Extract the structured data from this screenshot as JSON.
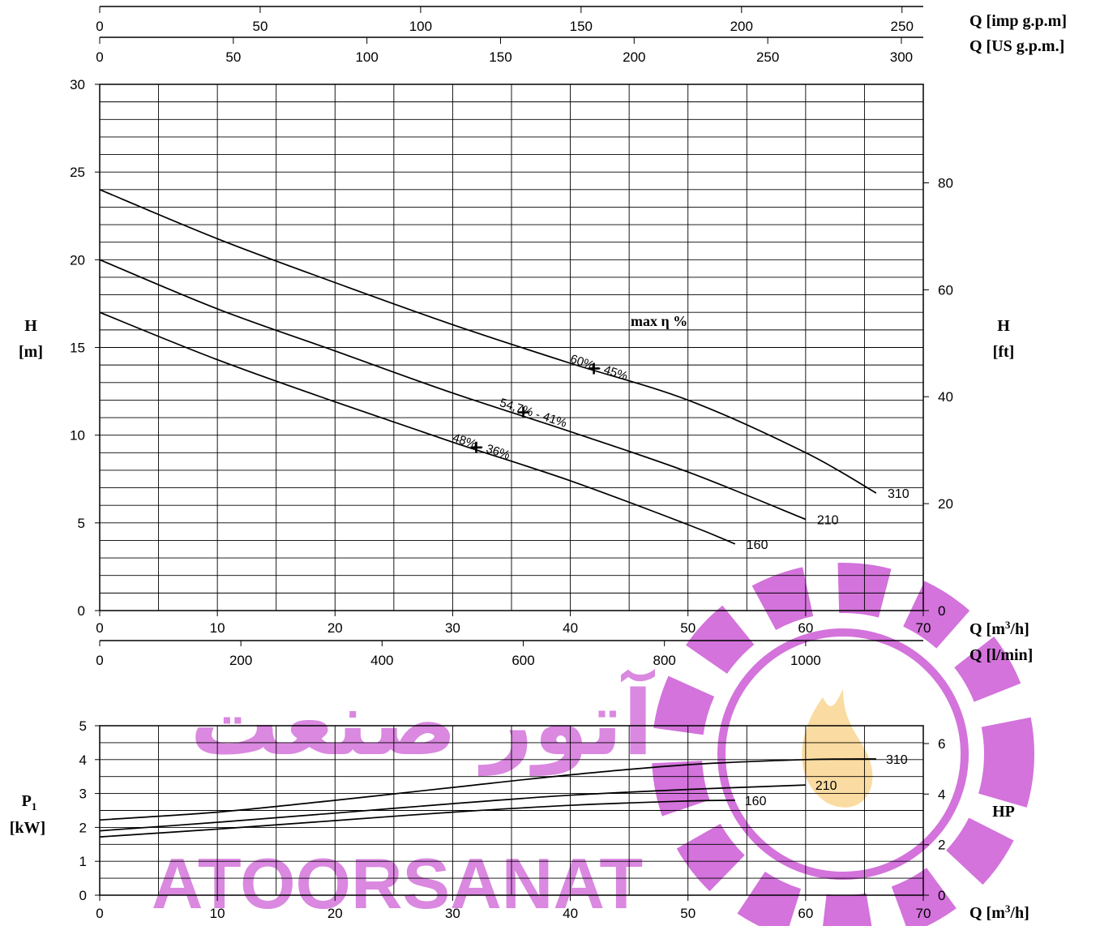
{
  "colors": {
    "line": "#000000",
    "grid": "#000000",
    "watermark": "#c850d2",
    "watermark_flame": "#f5b43c"
  },
  "watermark": {
    "latin_text": "ATOORSANAT",
    "persian_text": "آتور صنعت"
  },
  "chart_data": [
    {
      "type": "line",
      "name": "head",
      "x_unit_label": "Q [m³/h]",
      "xlim": [
        0,
        70
      ],
      "x_ticks": [
        0,
        10,
        20,
        30,
        40,
        50,
        60,
        70
      ],
      "ylabel": "H [m]",
      "ylim": [
        0,
        30
      ],
      "y_ticks": [
        0,
        5,
        10,
        15,
        20,
        25,
        30
      ],
      "right_axis": {
        "label": "H [ft]",
        "ticks": [
          0,
          20,
          40,
          60,
          80
        ]
      },
      "top_axes": [
        {
          "label": "Q [imp g.p.m]",
          "ticks": [
            0,
            50,
            100,
            150,
            200,
            250
          ]
        },
        {
          "label": "Q [US g.p.m.]",
          "ticks": [
            0,
            50,
            100,
            150,
            200,
            250,
            300
          ]
        }
      ],
      "bottom_extra_axis": {
        "label": "Q [l/min]",
        "ticks": [
          0,
          200,
          400,
          600,
          800,
          1000
        ]
      },
      "efficiency_title": "max η %",
      "series": [
        {
          "name": "310",
          "x": [
            0,
            10,
            20,
            30,
            40,
            50,
            60,
            66
          ],
          "y": [
            24.0,
            21.2,
            18.7,
            16.3,
            14.1,
            12.0,
            9.0,
            6.7
          ]
        },
        {
          "name": "210",
          "x": [
            0,
            10,
            20,
            30,
            40,
            50,
            60
          ],
          "y": [
            20.0,
            17.2,
            14.8,
            12.4,
            10.2,
            7.9,
            5.2
          ]
        },
        {
          "name": "160",
          "x": [
            0,
            10,
            20,
            30,
            40,
            50,
            54
          ],
          "y": [
            17.0,
            14.3,
            11.9,
            9.6,
            7.4,
            4.9,
            3.8
          ]
        }
      ],
      "efficiency_points": [
        {
          "label": "60% - 45%",
          "x": 42,
          "y": 13.8
        },
        {
          "label": "54,7% - 41%",
          "x": 36,
          "y": 11.3
        },
        {
          "label": "48% - 36%",
          "x": 32,
          "y": 9.3
        }
      ]
    },
    {
      "type": "line",
      "name": "power",
      "x_unit_label": "Q [m³/h]",
      "xlim": [
        0,
        70
      ],
      "x_ticks": [
        0,
        10,
        20,
        30,
        40,
        50,
        60,
        70
      ],
      "ylabel": "P1 [kW]",
      "ylim": [
        0,
        5
      ],
      "y_ticks": [
        0,
        1,
        2,
        3,
        4,
        5
      ],
      "right_axis": {
        "label": "HP",
        "ticks": [
          0,
          2,
          4,
          6
        ]
      },
      "series": [
        {
          "name": "310",
          "x": [
            0,
            10,
            20,
            30,
            40,
            50,
            60,
            66
          ],
          "y": [
            2.22,
            2.45,
            2.8,
            3.18,
            3.55,
            3.85,
            4.0,
            4.02
          ]
        },
        {
          "name": "210",
          "x": [
            0,
            10,
            20,
            30,
            40,
            50,
            60
          ],
          "y": [
            1.9,
            2.15,
            2.42,
            2.7,
            2.95,
            3.12,
            3.25
          ]
        },
        {
          "name": "160",
          "x": [
            0,
            10,
            20,
            30,
            40,
            50,
            54
          ],
          "y": [
            1.72,
            1.95,
            2.2,
            2.45,
            2.65,
            2.78,
            2.8
          ]
        }
      ]
    }
  ]
}
